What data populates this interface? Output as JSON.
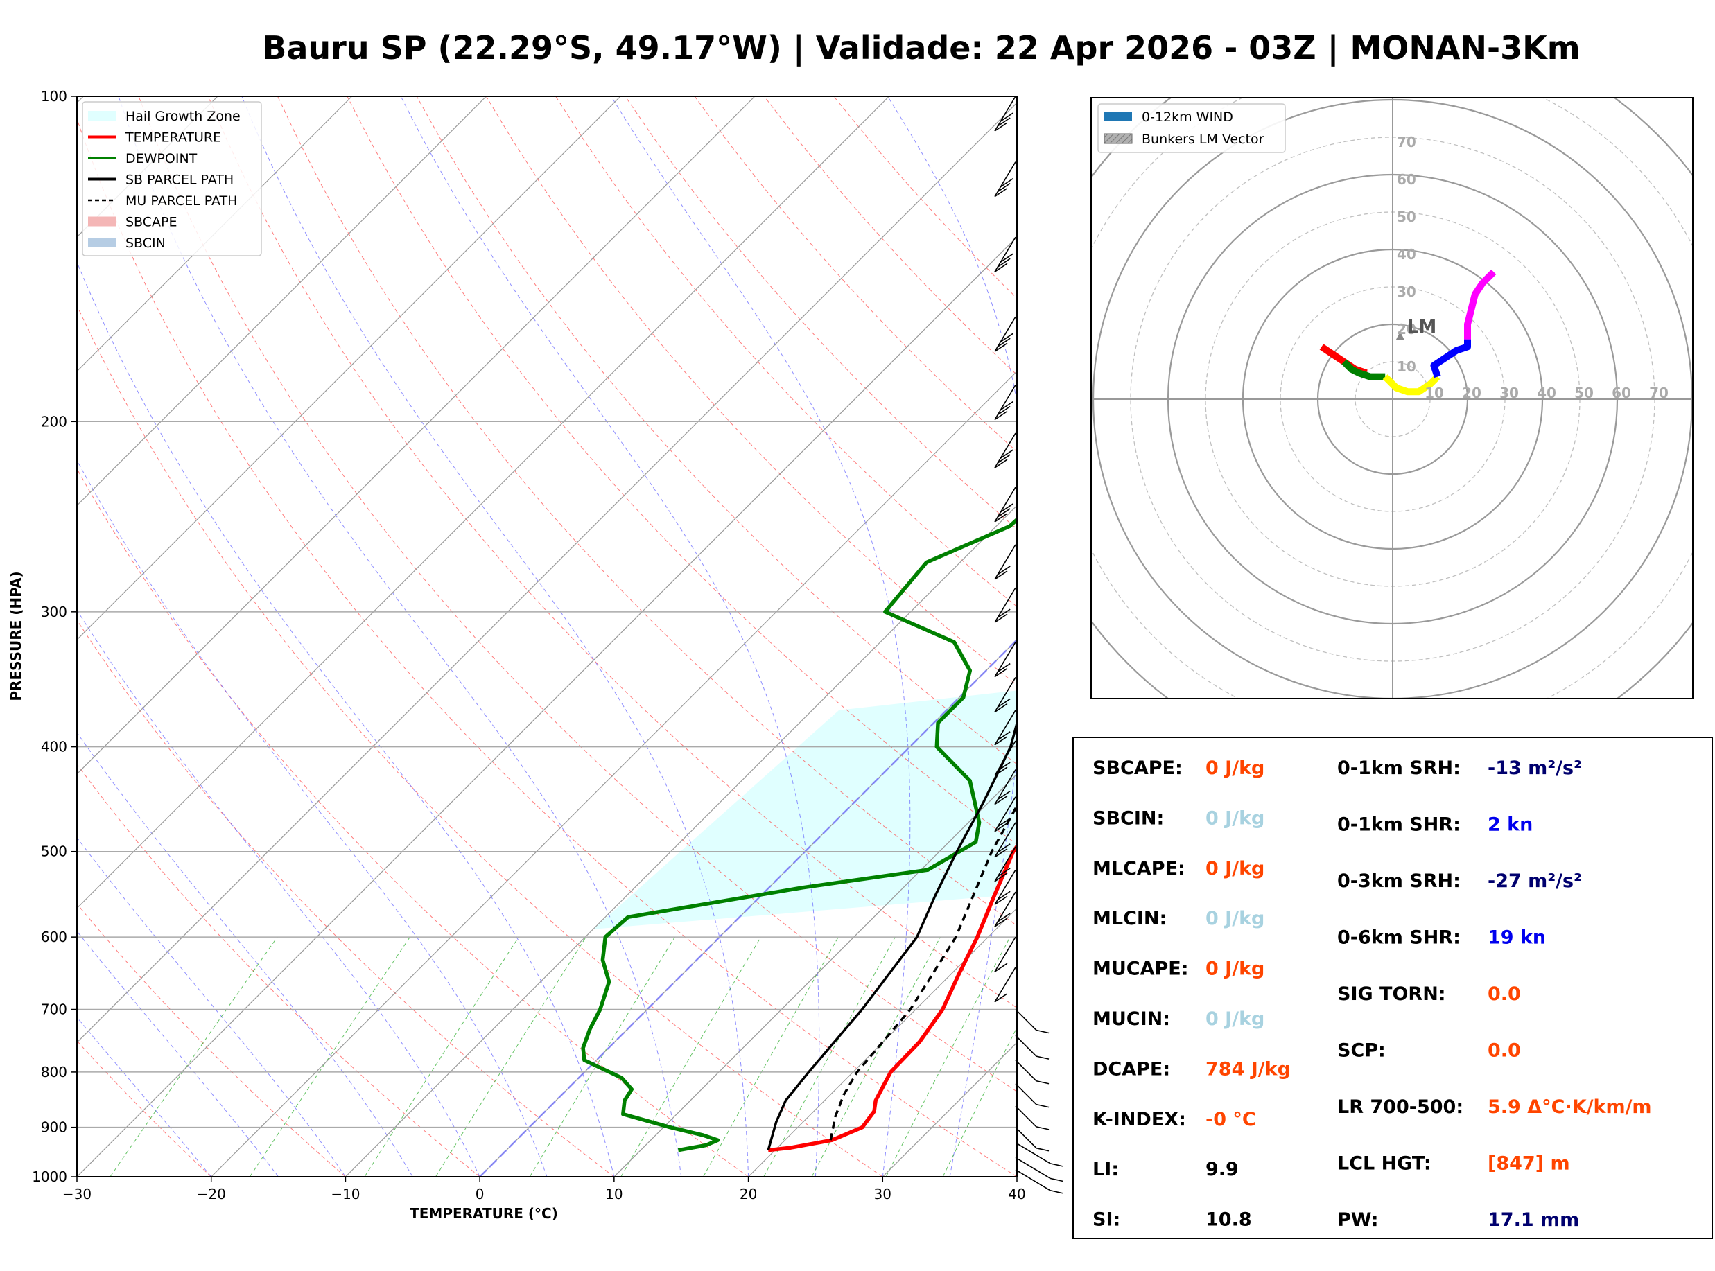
{
  "title": "Bauru SP (22.29°S, 49.17°W) | Validade: 22 Apr 2026 - 03Z | MONAN-3Km",
  "chart_data": [
    {
      "type": "line",
      "subtype": "skew-t log-p diagram",
      "xlabel": "TEMPERATURE (°C)",
      "ylabel": "PRESSURE (HPA)",
      "xlim": [
        -30,
        40
      ],
      "ylim": [
        1000,
        100
      ],
      "y_scale": "log",
      "grid": true,
      "legend_position": "top-left",
      "x_ticks": [
        -30,
        -20,
        -10,
        0,
        10,
        20,
        30,
        40
      ],
      "x_tick_labels": [
        "−30",
        "−20",
        "−10",
        "0",
        "10",
        "20",
        "30",
        "40"
      ],
      "y_ticks": [
        1000,
        900,
        800,
        700,
        600,
        500,
        400,
        300,
        200,
        100
      ],
      "y_tick_labels": [
        "1000",
        "900",
        "800",
        "700",
        "600",
        "500",
        "400",
        "300",
        "200",
        "100"
      ],
      "legend": [
        {
          "label": "Hail Growth Zone",
          "color": "#e0ffff",
          "kind": "patch"
        },
        {
          "label": "TEMPERATURE",
          "color": "#ff0000",
          "kind": "line"
        },
        {
          "label": "DEWPOINT",
          "color": "#008000",
          "kind": "line"
        },
        {
          "label": "SB PARCEL PATH",
          "color": "#000000",
          "kind": "line"
        },
        {
          "label": "MU PARCEL PATH",
          "color": "#000000",
          "kind": "dashed"
        },
        {
          "label": "SBCAPE",
          "color": "#f4b6b6",
          "kind": "patch"
        },
        {
          "label": "SBCIN",
          "color": "#b6cde4",
          "kind": "patch"
        }
      ],
      "series": [
        {
          "key": "temperature",
          "color": "#ff0000",
          "points": [
            [
              945,
              19.5
            ],
            [
              940,
              21
            ],
            [
              925,
              23.5
            ],
            [
              900,
              24.8
            ],
            [
              870,
              24.5
            ],
            [
              850,
              23.8
            ],
            [
              800,
              22.8
            ],
            [
              750,
              22.7
            ],
            [
              700,
              22.0
            ],
            [
              650,
              20.6
            ],
            [
              600,
              19.2
            ],
            [
              550,
              17.4
            ],
            [
              500,
              15.5
            ],
            [
              450,
              14.5
            ],
            [
              400,
              12.1
            ],
            [
              350,
              7.6
            ],
            [
              300,
              3.0
            ],
            [
              250,
              -2.3
            ],
            [
              210,
              -7.3
            ],
            [
              180,
              -10.3
            ],
            [
              155,
              -13.6
            ],
            [
              140,
              -13.4
            ],
            [
              120,
              -12.5
            ],
            [
              100,
              -9.0
            ]
          ]
        },
        {
          "key": "dewpoint",
          "color": "#008000",
          "points": [
            [
              945,
              12.8
            ],
            [
              935,
              14.5
            ],
            [
              925,
              15.0
            ],
            [
              915,
              13.5
            ],
            [
              900,
              10.5
            ],
            [
              875,
              6.0
            ],
            [
              850,
              5.1
            ],
            [
              830,
              4.8
            ],
            [
              810,
              3.2
            ],
            [
              780,
              -0.9
            ],
            [
              760,
              -1.9
            ],
            [
              730,
              -2.8
            ],
            [
              700,
              -3.5
            ],
            [
              660,
              -4.9
            ],
            [
              630,
              -7.0
            ],
            [
              600,
              -8.5
            ],
            [
              575,
              -8.3
            ],
            [
              540,
              2.5
            ],
            [
              520,
              10.5
            ],
            [
              490,
              12.0
            ],
            [
              470,
              10.8
            ],
            [
              430,
              7.0
            ],
            [
              400,
              2.0
            ],
            [
              380,
              0.3
            ],
            [
              360,
              0.3
            ],
            [
              340,
              -1.2
            ],
            [
              320,
              -4.5
            ],
            [
              300,
              -11.9
            ],
            [
              270,
              -12.5
            ],
            [
              250,
              -9.0
            ],
            [
              225,
              -8.6
            ],
            [
              200,
              -8.8
            ],
            [
              180,
              -9.1
            ],
            [
              150,
              -9.1
            ],
            [
              120,
              -8.0
            ],
            [
              100,
              -6.7
            ]
          ]
        },
        {
          "key": "sb_parcel",
          "color": "#000000",
          "dash": "none",
          "points": [
            [
              945,
              19.5
            ],
            [
              890,
              18.0
            ],
            [
              850,
              17.1
            ],
            [
              800,
              16.7
            ],
            [
              700,
              16.0
            ],
            [
              600,
              14.7
            ],
            [
              550,
              13.0
            ],
            [
              500,
              11.3
            ],
            [
              450,
              9.6
            ],
            [
              400,
              7.5
            ],
            [
              350,
              4.1
            ],
            [
              300,
              -0.5
            ],
            [
              250,
              -6.0
            ],
            [
              200,
              -13.7
            ],
            [
              150,
              -23.0
            ],
            [
              100,
              -34.0
            ]
          ]
        },
        {
          "key": "mu_parcel",
          "color": "#000000",
          "dash": "10,7",
          "points": [
            [
              925,
              23.4
            ],
            [
              880,
              22.0
            ],
            [
              840,
              21.0
            ],
            [
              800,
              20.3
            ],
            [
              700,
              19.6
            ],
            [
              600,
              17.6
            ],
            [
              500,
              13.9
            ],
            [
              400,
              10.4
            ],
            [
              350,
              7.9
            ],
            [
              300,
              3.8
            ],
            [
              250,
              -1.7
            ],
            [
              200,
              -9.5
            ],
            [
              150,
              -19.3
            ],
            [
              120,
              -24.9
            ]
          ]
        }
      ]
    },
    {
      "type": "line",
      "subtype": "hodograph",
      "radial_ticks": [
        "10",
        "20",
        "30",
        "40",
        "50",
        "60",
        "70"
      ],
      "axis_tick_labels_x": [
        "10",
        "20",
        "30",
        "40",
        "50",
        "60",
        "70"
      ],
      "grid": true,
      "legend_position": "top-left",
      "legend": [
        {
          "label": "0-12km WIND",
          "color": "#1f77b4",
          "kind": "patch"
        },
        {
          "label": "Bunkers LM Vector",
          "color": "#999999",
          "kind": "patch-hatched"
        }
      ],
      "lm_label": "LM",
      "lm_vector": [
        2,
        17
      ],
      "segments": [
        {
          "color": "#ff0000",
          "points": [
            [
              -19,
              14
            ],
            [
              -16,
              12
            ],
            [
              -13,
              10
            ],
            [
              -10,
              8
            ],
            [
              -7,
              7
            ]
          ]
        },
        {
          "color": "#008000",
          "points": [
            [
              -13,
              10
            ],
            [
              -11,
              8
            ],
            [
              -9,
              7
            ],
            [
              -6,
              6
            ],
            [
              -4,
              6
            ],
            [
              -2,
              6
            ]
          ]
        },
        {
          "color": "#ffff00",
          "points": [
            [
              -2,
              6
            ],
            [
              1,
              3
            ],
            [
              4,
              2
            ],
            [
              7,
              2
            ],
            [
              10,
              4
            ],
            [
              12,
              6
            ]
          ]
        },
        {
          "color": "#0000ff",
          "points": [
            [
              12,
              6
            ],
            [
              11,
              9
            ],
            [
              14,
              11
            ],
            [
              17,
              13
            ],
            [
              20,
              14
            ],
            [
              20,
              16
            ]
          ]
        },
        {
          "color": "#ff00ff",
          "points": [
            [
              20,
              16
            ],
            [
              20,
              20
            ],
            [
              21,
              24
            ],
            [
              22,
              28
            ],
            [
              24,
              31
            ],
            [
              26,
              33
            ],
            [
              27,
              34
            ]
          ]
        }
      ]
    }
  ],
  "indices": {
    "left": [
      {
        "label": "SBCAPE:",
        "value": "0 J/kg",
        "color": "#ff4500"
      },
      {
        "label": "SBCIN:",
        "value": "0 J/kg",
        "color": "#a8d2e0"
      },
      {
        "label": "MLCAPE:",
        "value": "0 J/kg",
        "color": "#ff4500"
      },
      {
        "label": "MLCIN:",
        "value": "0 J/kg",
        "color": "#a8d2e0"
      },
      {
        "label": "MUCAPE:",
        "value": "0 J/kg",
        "color": "#ff4500"
      },
      {
        "label": "MUCIN:",
        "value": "0 J/kg",
        "color": "#a8d2e0"
      },
      {
        "label": "DCAPE:",
        "value": "784 J/kg",
        "color": "#ff4500"
      },
      {
        "label": "K-INDEX:",
        "value": "-0 °C",
        "color": "#ff4500"
      },
      {
        "label": "LI:",
        "value": "9.9",
        "color": "#000000"
      },
      {
        "label": "SI:",
        "value": "10.8",
        "color": "#000000"
      }
    ],
    "right": [
      {
        "label": "0-1km SRH:",
        "value": "-13 m²/s²",
        "color": "#00006e"
      },
      {
        "label": "0-1km SHR:",
        "value": "2 kn",
        "color": "#0000ee"
      },
      {
        "label": "0-3km SRH:",
        "value": "-27 m²/s²",
        "color": "#00006e"
      },
      {
        "label": "0-6km SHR:",
        "value": "19 kn",
        "color": "#0000ee"
      },
      {
        "label": "SIG TORN:",
        "value": "0.0",
        "color": "#ff4500"
      },
      {
        "label": "SCP:",
        "value": "0.0",
        "color": "#ff4500"
      },
      {
        "label": "LR 700-500:",
        "value": "5.9 Δ°C·K/km/m",
        "color": "#ff4500"
      },
      {
        "label": "LCL HGT:",
        "value": "[847] m",
        "color": "#ff4500"
      },
      {
        "label": "PW:",
        "value": "17.1 mm",
        "color": "#00006e"
      }
    ]
  }
}
